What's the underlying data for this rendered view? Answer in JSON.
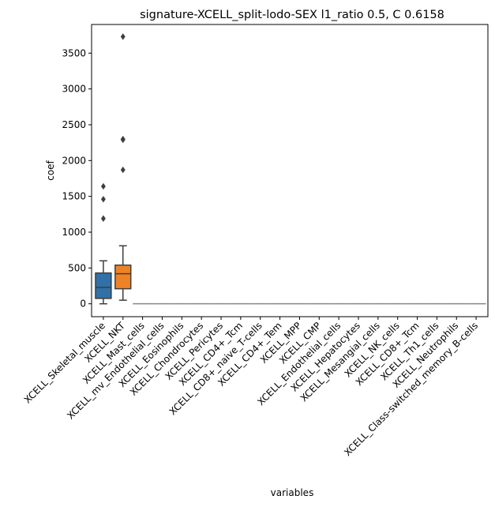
{
  "chart_data": {
    "type": "box",
    "title": "signature-XCELL_split-lodo-SEX l1_ratio 0.5, C 0.6158",
    "xlabel": "variables",
    "ylabel": "coef",
    "ylim": [
      -180,
      3900
    ],
    "yticks": [
      0,
      500,
      1000,
      1500,
      2000,
      2500,
      3000,
      3500
    ],
    "grid": false,
    "categories": [
      "XCELL_Skeletal_muscle",
      "XCELL_NKT",
      "XCELL_Mast_cells",
      "XCELL_mv_Endothelial_cells",
      "XCELL_Eosinophils",
      "XCELL_Chondrocytes",
      "XCELL_Pericytes",
      "XCELL_CD4+_Tcm",
      "XCELL_CD8+_naive_T-cells",
      "XCELL_CD4+_Tem",
      "XCELL_MPP",
      "XCELL_CMP",
      "XCELL_Endothelial_cells",
      "XCELL_Hepatocytes",
      "XCELL_Mesangial_cells",
      "XCELL_NK_cells",
      "XCELL_CD8+_Tcm",
      "XCELL_Th1_cells",
      "XCELL_Neutrophils",
      "XCELL_Class-switched_memory_B-cells"
    ],
    "boxes": [
      {
        "whisker_low": 0,
        "q1": 75,
        "median": 230,
        "q3": 430,
        "whisker_high": 600,
        "outliers": [
          1190,
          1460,
          1640
        ],
        "color": "#2f71a8"
      },
      {
        "whisker_low": 50,
        "q1": 210,
        "median": 420,
        "q3": 540,
        "whisker_high": 810,
        "outliers": [
          1870,
          2290,
          2300,
          3730
        ],
        "color": "#ee8326"
      },
      {
        "whisker_low": 0,
        "q1": 0,
        "median": 0,
        "q3": 0,
        "whisker_high": 0,
        "outliers": [],
        "color": "#3c9b3c"
      },
      {
        "whisker_low": 0,
        "q1": 0,
        "median": 0,
        "q3": 0,
        "whisker_high": 0,
        "outliers": [],
        "color": "#c43a3a"
      },
      {
        "whisker_low": 0,
        "q1": 0,
        "median": 0,
        "q3": 0,
        "whisker_high": 0,
        "outliers": [],
        "color": "#8d6cb5"
      },
      {
        "whisker_low": 0,
        "q1": 0,
        "median": 0,
        "q3": 0,
        "whisker_high": 0,
        "outliers": [],
        "color": "#7c564c"
      },
      {
        "whisker_low": 0,
        "q1": 0,
        "median": 0,
        "q3": 0,
        "whisker_high": 0,
        "outliers": [],
        "color": "#d27db5"
      },
      {
        "whisker_low": 0,
        "q1": 0,
        "median": 0,
        "q3": 0,
        "whisker_high": 0,
        "outliers": [],
        "color": "#7a7a7a"
      },
      {
        "whisker_low": 0,
        "q1": 0,
        "median": 0,
        "q3": 0,
        "whisker_high": 0,
        "outliers": [],
        "color": "#a8a934"
      },
      {
        "whisker_low": 0,
        "q1": 0,
        "median": 0,
        "q3": 0,
        "whisker_high": 0,
        "outliers": [],
        "color": "#31aab8"
      },
      {
        "whisker_low": 0,
        "q1": 0,
        "median": 0,
        "q3": 0,
        "whisker_high": 0,
        "outliers": [],
        "color": "#2f71a8"
      },
      {
        "whisker_low": 0,
        "q1": 0,
        "median": 0,
        "q3": 0,
        "whisker_high": 0,
        "outliers": [],
        "color": "#ee8326"
      },
      {
        "whisker_low": 0,
        "q1": 0,
        "median": 0,
        "q3": 0,
        "whisker_high": 0,
        "outliers": [],
        "color": "#3c9b3c"
      },
      {
        "whisker_low": 0,
        "q1": 0,
        "median": 0,
        "q3": 0,
        "whisker_high": 0,
        "outliers": [],
        "color": "#c43a3a"
      },
      {
        "whisker_low": 0,
        "q1": 0,
        "median": 0,
        "q3": 0,
        "whisker_high": 0,
        "outliers": [],
        "color": "#8d6cb5"
      },
      {
        "whisker_low": 0,
        "q1": 0,
        "median": 0,
        "q3": 0,
        "whisker_high": 0,
        "outliers": [],
        "color": "#7c564c"
      },
      {
        "whisker_low": 0,
        "q1": 0,
        "median": 0,
        "q3": 0,
        "whisker_high": 0,
        "outliers": [],
        "color": "#d27db5"
      },
      {
        "whisker_low": 0,
        "q1": 0,
        "median": 0,
        "q3": 0,
        "whisker_high": 0,
        "outliers": [],
        "color": "#7a7a7a"
      },
      {
        "whisker_low": 0,
        "q1": 0,
        "median": 0,
        "q3": 0,
        "whisker_high": 0,
        "outliers": [],
        "color": "#a8a934"
      },
      {
        "whisker_low": 0,
        "q1": 0,
        "median": 0,
        "q3": 0,
        "whisker_high": 0,
        "outliers": [],
        "color": "#31aab8"
      }
    ],
    "line_color": "#3f3f3f",
    "flat_line_color": "#888888"
  }
}
